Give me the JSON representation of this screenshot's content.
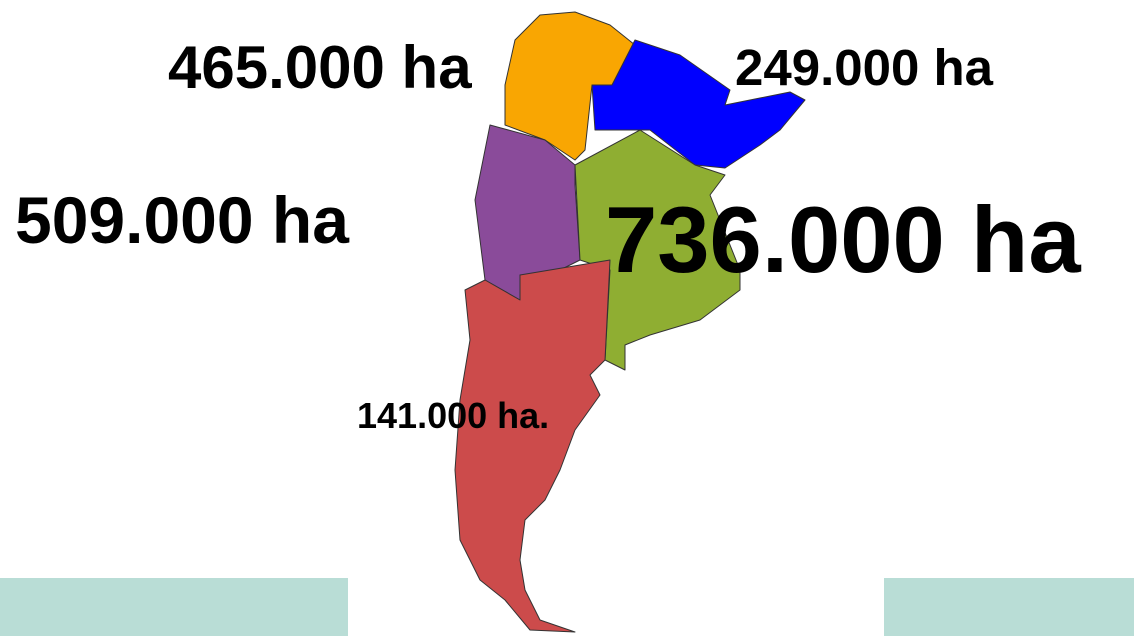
{
  "labels": [
    "465.000 ha",
    "249.000 ha",
    "509.000 ha",
    "736.000 ha",
    "141.000 ha."
  ]
}
